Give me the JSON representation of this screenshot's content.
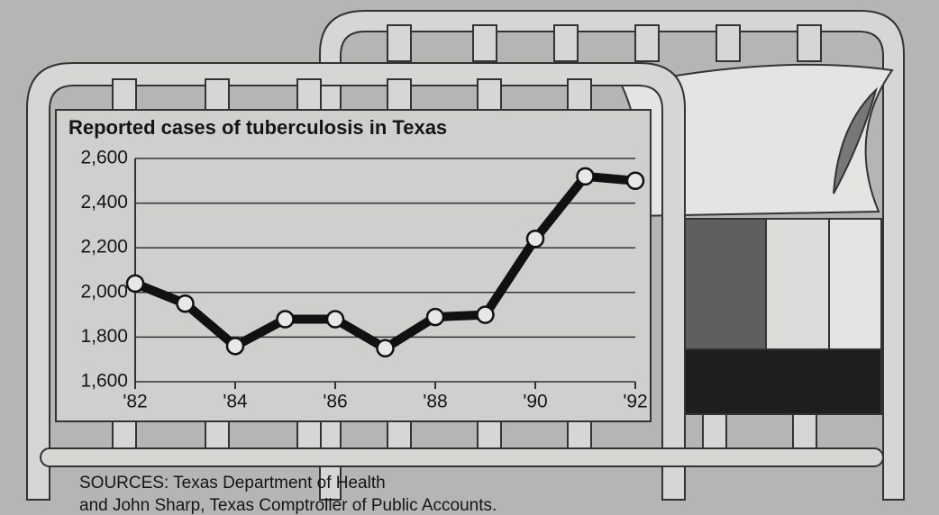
{
  "chart_data": {
    "type": "line",
    "title": "Reported cases of tuberculosis in Texas",
    "x": [
      1982,
      1983,
      1984,
      1985,
      1986,
      1987,
      1988,
      1989,
      1990,
      1991,
      1992
    ],
    "values": [
      2040,
      1950,
      1760,
      1880,
      1880,
      1750,
      1890,
      1900,
      2240,
      2520,
      2500
    ],
    "color": "#111111",
    "xlim": [
      1982,
      1992
    ],
    "xticks": [
      {
        "value": 1982,
        "label": "'82"
      },
      {
        "value": 1984,
        "label": "'84"
      },
      {
        "value": 1986,
        "label": "'86"
      },
      {
        "value": 1988,
        "label": "'88"
      },
      {
        "value": 1990,
        "label": "'90"
      },
      {
        "value": 1992,
        "label": "'92"
      }
    ],
    "ylim": [
      1600,
      2600
    ],
    "yticks": [
      {
        "value": 1600,
        "label": "1,600"
      },
      {
        "value": 1800,
        "label": "1,800"
      },
      {
        "value": 2000,
        "label": "2,000"
      },
      {
        "value": 2200,
        "label": "2,200"
      },
      {
        "value": 2400,
        "label": "2,400"
      },
      {
        "value": 2600,
        "label": "2,600"
      }
    ],
    "grid": true,
    "notes": [
      "SOURCES: Texas Department of Health",
      "and John Sharp, Texas Comptroller of Public Accounts."
    ]
  }
}
